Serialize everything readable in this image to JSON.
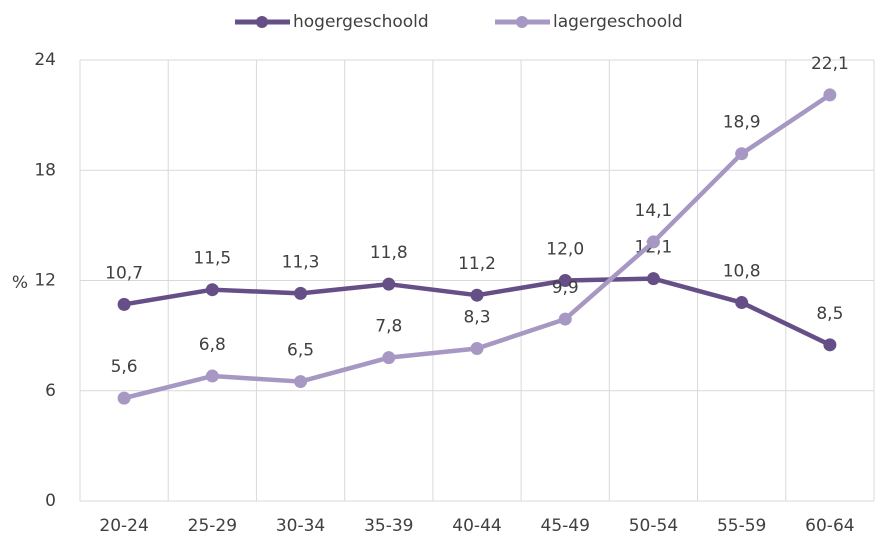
{
  "chart_data": {
    "type": "line",
    "categories": [
      "20-24",
      "25-29",
      "30-34",
      "35-39",
      "40-44",
      "45-49",
      "50-54",
      "55-59",
      "60-64"
    ],
    "series": [
      {
        "name": "hogergeschoold",
        "color": "#654f86",
        "values": [
          10.7,
          11.5,
          11.3,
          11.8,
          11.2,
          12.0,
          12.1,
          10.8,
          8.5
        ],
        "value_labels": [
          "10,7",
          "11,5",
          "11,3",
          "11,8",
          "11,2",
          "12,0",
          "12,1",
          "10,8",
          "8,5"
        ]
      },
      {
        "name": "lagergeschoold",
        "color": "#a697c3",
        "values": [
          5.6,
          6.8,
          6.5,
          7.8,
          8.3,
          9.9,
          14.1,
          18.9,
          22.1
        ],
        "value_labels": [
          "5,6",
          "6,8",
          "6,5",
          "7,8",
          "8,3",
          "9,9",
          "14,1",
          "18,9",
          "22,1"
        ]
      }
    ],
    "ylabel": "%",
    "ylim": [
      0,
      24
    ],
    "yticks": [
      0,
      6,
      12,
      18,
      24
    ],
    "grid": true,
    "legend": "top"
  }
}
